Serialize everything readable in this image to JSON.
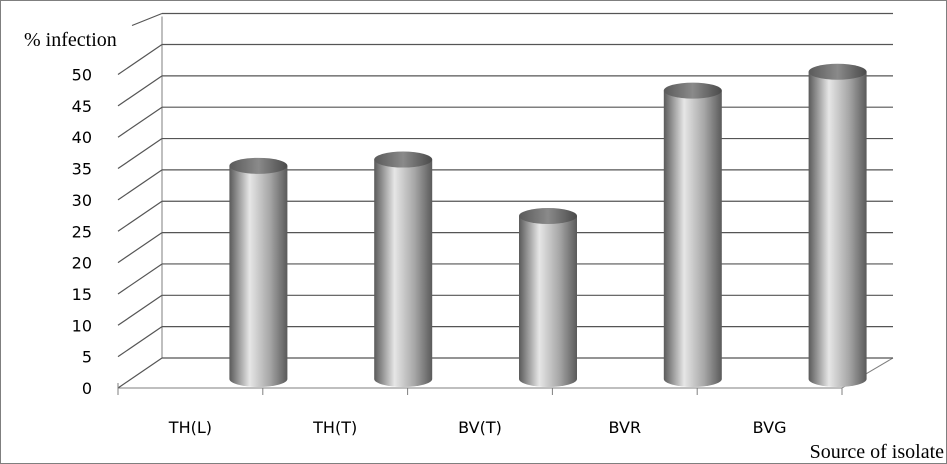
{
  "chart_data": {
    "type": "bar",
    "style": "3d-cylinder",
    "categories": [
      "TH(L)",
      "TH(T)",
      "BV(T)",
      "BVR",
      "BVG"
    ],
    "values": [
      34,
      35,
      26,
      46,
      49
    ],
    "ylabel": "% infection",
    "xlabel": "Source of isolate",
    "ylim": [
      0,
      50
    ],
    "yticks": [
      0,
      5,
      10,
      15,
      20,
      25,
      30,
      35,
      40,
      45,
      50
    ],
    "grid": true,
    "legend": "none",
    "colors": {
      "bar_light": "#e6e6e6",
      "bar_mid": "#a6a6a6",
      "bar_dark": "#5a5a5a",
      "gridline": "#555555",
      "border": "#7f7f7f"
    }
  }
}
